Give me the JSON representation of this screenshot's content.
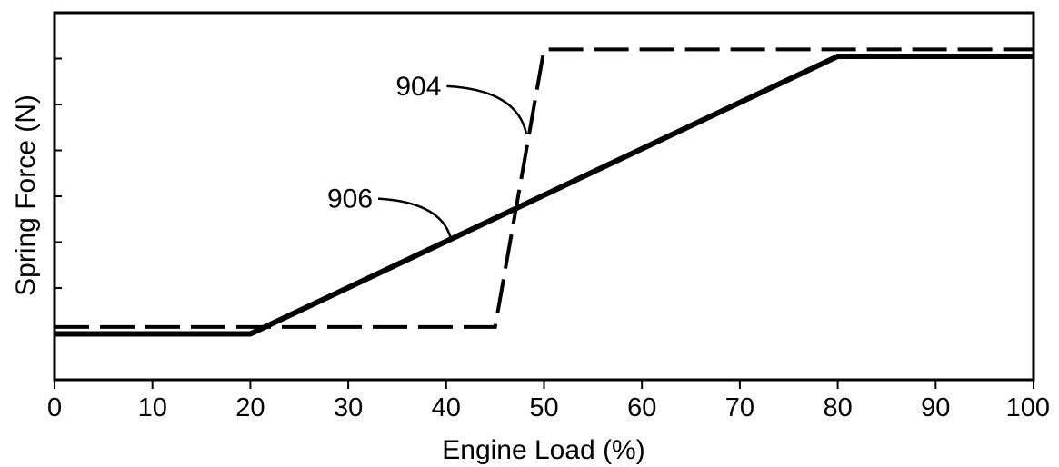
{
  "chart_data": {
    "type": "line",
    "title": "",
    "xlabel": "Engine Load (%)",
    "ylabel": "Spring Force (N)",
    "xlim": [
      0,
      100
    ],
    "ylim": [
      0,
      8
    ],
    "x_ticks": [
      0,
      10,
      20,
      30,
      40,
      50,
      60,
      70,
      80,
      90,
      100
    ],
    "x_tick_labels": [
      "0",
      "10",
      "20",
      "30",
      "40",
      "50",
      "60",
      "70",
      "80",
      "90",
      "100"
    ],
    "y_ticks": [
      1,
      2,
      3,
      4,
      5,
      6,
      7
    ],
    "y_tick_labels_shown": false,
    "grid": false,
    "legend": "none",
    "series": [
      {
        "ref": "904",
        "style": "dashed",
        "color": "#000000",
        "x": [
          0,
          45,
          50,
          100
        ],
        "y": [
          1.15,
          1.15,
          7.2,
          7.2
        ]
      },
      {
        "ref": "906",
        "style": "solid",
        "color": "#000000",
        "x": [
          0,
          20,
          80,
          100
        ],
        "y": [
          1.0,
          1.0,
          7.05,
          7.05
        ]
      }
    ],
    "annotations": [
      {
        "text": "904",
        "x": 39.5,
        "y": 6.2,
        "points_to_series": "904",
        "target_x": 48.2,
        "target_y": 5.35
      },
      {
        "text": "906",
        "x": 32.5,
        "y": 3.75,
        "points_to_series": "906",
        "target_x": 40.5,
        "target_y": 3.06
      }
    ]
  }
}
